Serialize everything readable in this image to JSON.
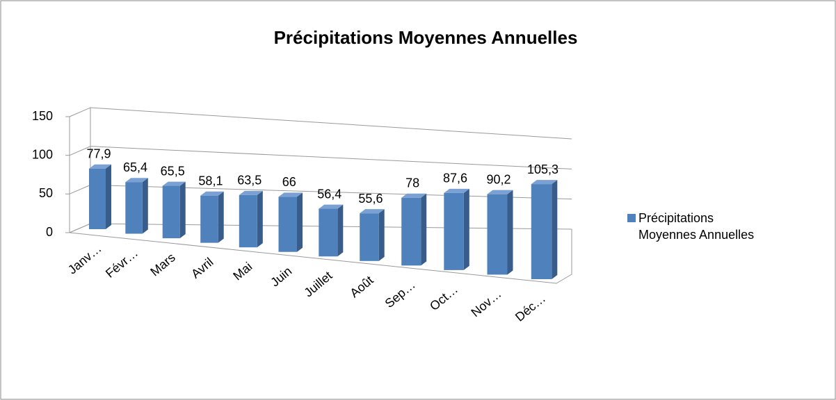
{
  "chart_data": {
    "type": "bar3d",
    "title": "Précipitations Moyennes Annuelles",
    "categories": [
      "Janv…",
      "Févr…",
      "Mars",
      "Avril",
      "Mai",
      "Juin",
      "Juillet",
      "Août",
      "Sep…",
      "Oct…",
      "Nov…",
      "Déc…"
    ],
    "series": [
      {
        "name": "Précipitations Moyennes Annuelles",
        "color": "#4f81bd",
        "values": [
          77.9,
          65.4,
          65.5,
          58.1,
          63.5,
          66,
          56.4,
          55.6,
          78,
          87.6,
          90.2,
          105.3
        ],
        "value_labels": [
          "77,9",
          "65,4",
          "65,5",
          "58,1",
          "63,5",
          "66",
          "56,4",
          "55,6",
          "78",
          "87,6",
          "90,2",
          "105,3"
        ]
      }
    ],
    "ylim": [
      0,
      150
    ],
    "yticks": [
      0,
      50,
      100,
      150
    ],
    "grid": true,
    "legend": "right"
  }
}
